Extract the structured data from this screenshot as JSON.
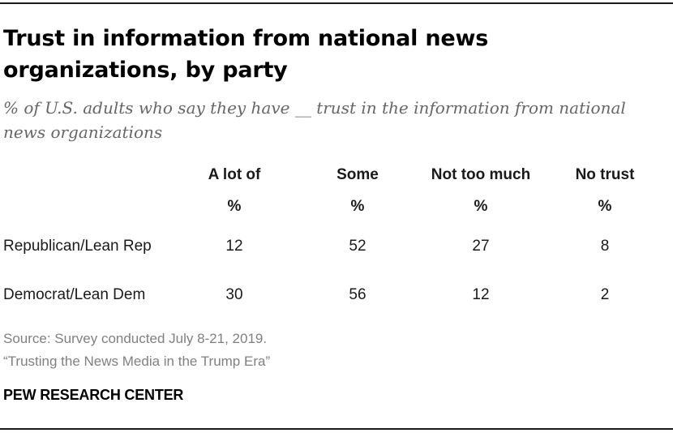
{
  "title": "Trust in information from national news organizations, by party",
  "subtitle": "% of U.S. adults who say they have __ trust in the information from national news organizations",
  "table": {
    "columns": [
      "A lot of",
      "Some",
      "Not too much",
      "No trust"
    ],
    "unit": "%",
    "rows": [
      {
        "label": "Republican/Lean Rep",
        "values": [
          "12",
          "52",
          "27",
          "8"
        ]
      },
      {
        "label": "Democrat/Lean Dem",
        "values": [
          "30",
          "56",
          "12",
          "2"
        ]
      }
    ]
  },
  "chart_data": {
    "type": "table",
    "title": "Trust in information from national news organizations, by party",
    "subtitle": "% of U.S. adults who say they have __ trust in the information from national news organizations",
    "categories": [
      "A lot of",
      "Some",
      "Not too much",
      "No trust"
    ],
    "unit": "%",
    "series": [
      {
        "name": "Republican/Lean Rep",
        "values": [
          12,
          52,
          27,
          8
        ]
      },
      {
        "name": "Democrat/Lean Dem",
        "values": [
          30,
          56,
          12,
          2
        ]
      }
    ]
  },
  "footer": {
    "source": "Source: Survey conducted July 8-21, 2019.",
    "report": "“Trusting the News Media in the Trump Era”",
    "org": "PEW RESEARCH CENTER"
  }
}
